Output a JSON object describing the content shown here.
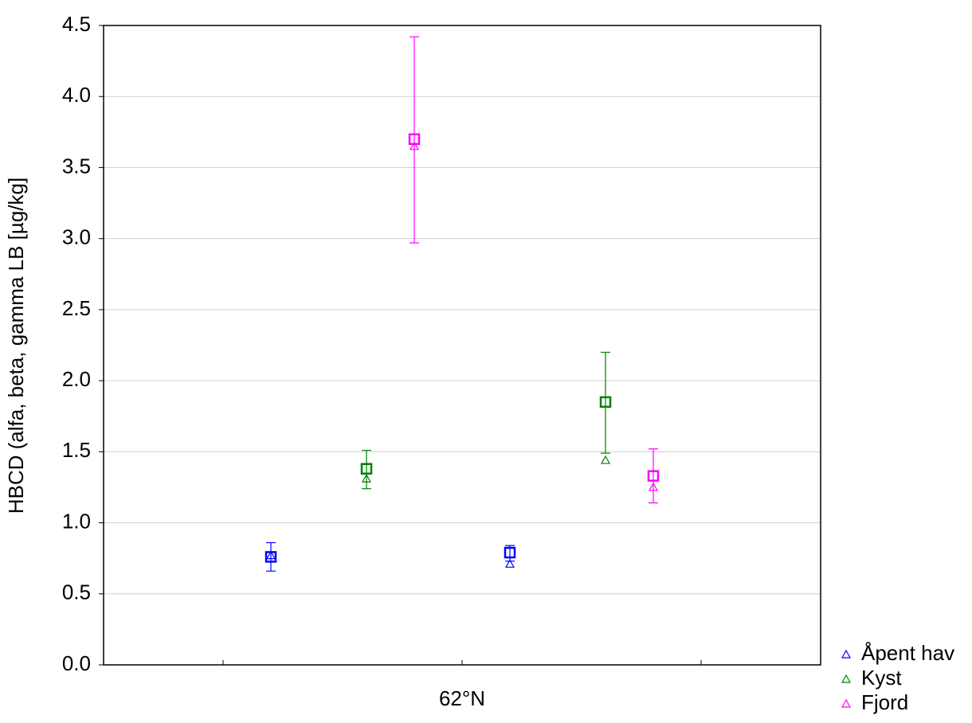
{
  "chart_data": {
    "type": "scatter",
    "y_label": "HBCD (alfa, beta, gamma LB [µg/kg]",
    "categories": [
      null,
      "62°N",
      null
    ],
    "xlim": [
      0,
      3
    ],
    "ylim": [
      0,
      4.5
    ],
    "yticks": [
      {
        "value": 0,
        "label": "0.0"
      },
      0.5,
      {
        "value": 1,
        "label": "1.0"
      },
      1.5,
      {
        "value": 2,
        "label": "2.0"
      },
      2.5,
      {
        "value": 3,
        "label": "3.0"
      },
      3.5,
      {
        "value": 4,
        "label": "4.0"
      },
      4.5
    ],
    "grid": true,
    "legend": "bottom-right",
    "series": [
      {
        "name": "Åpent hav",
        "color": "#0000ff",
        "x": [
          0.7,
          1.7
        ],
        "values": [
          0.76,
          0.79
        ],
        "upper": [
          0.86,
          0.84
        ],
        "lower": [
          0.66,
          0.73
        ],
        "triangle_values": [
          0.77,
          0.71
        ]
      },
      {
        "name": "Kyst",
        "color": "#008000",
        "x": [
          1.1,
          2.1
        ],
        "values": [
          1.38,
          1.85
        ],
        "upper": [
          1.51,
          2.2
        ],
        "lower": [
          1.24,
          1.49
        ],
        "triangle_values": [
          1.31,
          1.44
        ]
      },
      {
        "name": "Fjord",
        "color": "#ff00ff",
        "x": [
          1.3,
          2.3
        ],
        "values": [
          3.7,
          1.33
        ],
        "upper": [
          4.42,
          1.52
        ],
        "lower": [
          2.97,
          1.14
        ],
        "triangle_values": [
          3.65,
          1.25
        ]
      }
    ]
  }
}
